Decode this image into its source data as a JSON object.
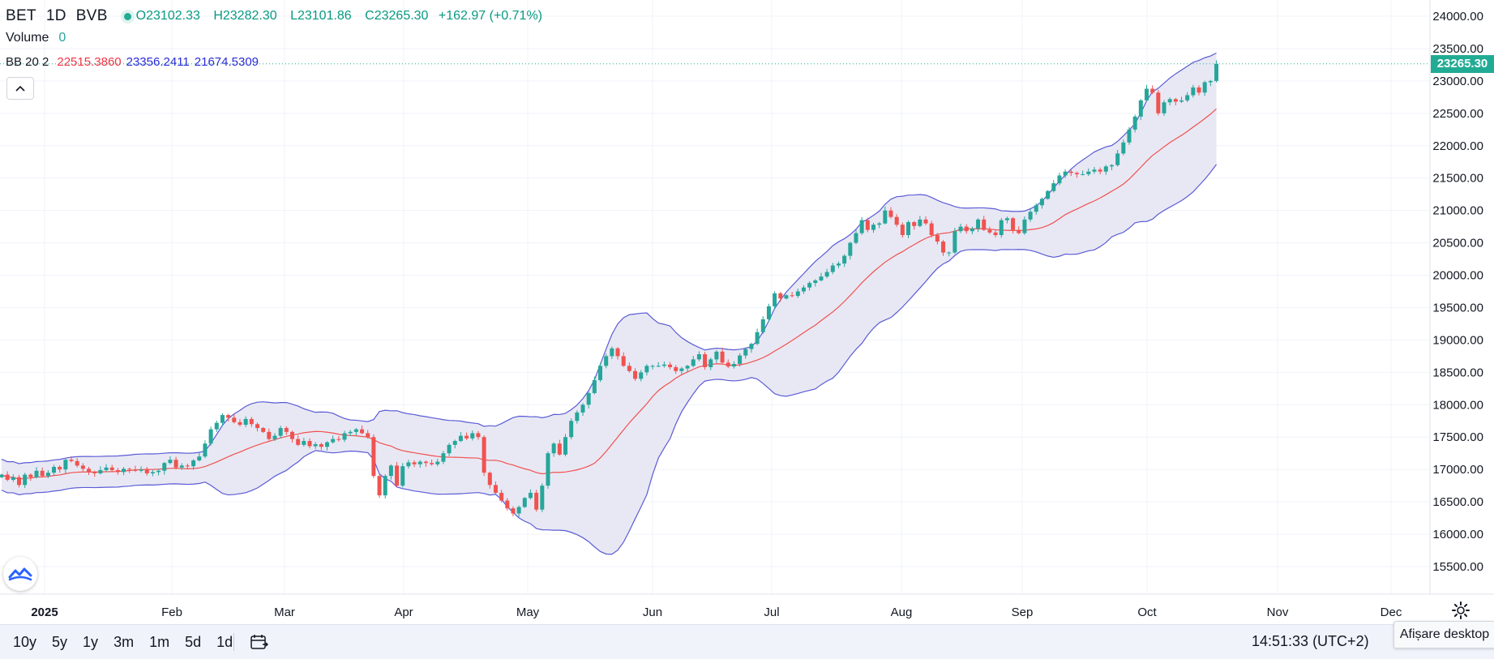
{
  "header": {
    "symbol": "BET",
    "interval": "1D",
    "exchange": "BVB",
    "open_label": "O",
    "open": "23102.33",
    "high_label": "H",
    "high": "23282.30",
    "low_label": "L",
    "low": "23101.86",
    "close_label": "C",
    "close": "23265.30",
    "change": "+162.97 (+0.71%)"
  },
  "volume": {
    "label": "Volume",
    "value": "0"
  },
  "bb": {
    "label": "BB 20 2",
    "basis": "22515.3860",
    "upper": "23356.2411",
    "lower": "21674.5309"
  },
  "last_price_tag": "23265.30",
  "bottom_bar": {
    "ranges": [
      "10y",
      "5y",
      "1y",
      "3m",
      "1m",
      "5d",
      "1d"
    ],
    "clock": "14:51:33 (UTC+2)",
    "tooltip": "Afișare desktop"
  },
  "icons": {
    "collapse": "chevron-up-icon",
    "logo": "tradingview-logo-icon",
    "calendar": "calendar-range-icon",
    "settings": "gear-icon"
  },
  "colors": {
    "up": "#26a69a",
    "down": "#ef5350",
    "bb_band": "#5b5bd6",
    "bb_basis": "#f0514f",
    "bb_fill": "#e6e6f3",
    "last_price": "#22ab94"
  },
  "chart_data": {
    "type": "candlestick",
    "title": "BET · 1D · BVB",
    "ylim": [
      15100,
      24200
    ],
    "y_ticks": [
      "15500.00",
      "16000.00",
      "16500.00",
      "17000.00",
      "17500.00",
      "18000.00",
      "18500.00",
      "19000.00",
      "19500.00",
      "20000.00",
      "20500.00",
      "21000.00",
      "21500.00",
      "22000.00",
      "22500.00",
      "23000.00",
      "23500.00",
      "24000.00"
    ],
    "x_labels": [
      "2025",
      "Feb",
      "Mar",
      "Apr",
      "May",
      "Jun",
      "Jul",
      "Aug",
      "Sep",
      "Oct",
      "Nov",
      "Dec"
    ],
    "grid": true,
    "legend_position": "top-left",
    "close_prices": [
      16920,
      16840,
      16880,
      16760,
      16920,
      16880,
      16980,
      16900,
      16950,
      17040,
      17000,
      17150,
      17130,
      17060,
      17010,
      16960,
      16940,
      16990,
      17030,
      16990,
      16960,
      17010,
      17000,
      16980,
      17000,
      16940,
      16960,
      16980,
      17100,
      17150,
      17030,
      17060,
      17050,
      17140,
      17200,
      17400,
      17620,
      17720,
      17840,
      17800,
      17730,
      17690,
      17780,
      17700,
      17640,
      17580,
      17470,
      17520,
      17640,
      17580,
      17470,
      17380,
      17440,
      17360,
      17390,
      17350,
      17420,
      17470,
      17460,
      17560,
      17580,
      17620,
      17560,
      17500,
      16900,
      16600,
      16900,
      17060,
      16750,
      17050,
      17110,
      17080,
      17120,
      17100,
      17080,
      17120,
      17250,
      17380,
      17440,
      17520,
      17480,
      17560,
      17500,
      16950,
      16760,
      16640,
      16520,
      16400,
      16320,
      16420,
      16560,
      16640,
      16380,
      16750,
      17250,
      17400,
      17230,
      17500,
      17750,
      17880,
      18000,
      18180,
      18380,
      18600,
      18750,
      18870,
      18750,
      18600,
      18520,
      18400,
      18500,
      18600,
      18600,
      18600,
      18620,
      18580,
      18520,
      18560,
      18600,
      18700,
      18780,
      18580,
      18700,
      18820,
      18650,
      18590,
      18630,
      18760,
      18860,
      18940,
      19120,
      19320,
      19520,
      19720,
      19640,
      19690,
      19680,
      19750,
      19810,
      19880,
      19920,
      19980,
      20050,
      20150,
      20180,
      20300,
      20500,
      20650,
      20850,
      20700,
      20780,
      20800,
      21000,
      20900,
      20780,
      20620,
      20820,
      20760,
      20860,
      20800,
      20620,
      20520,
      20350,
      20350,
      20680,
      20750,
      20680,
      20720,
      20860,
      20700,
      20660,
      20620,
      20850,
      20880,
      20700,
      20650,
      20860,
      20980,
      21080,
      21180,
      21300,
      21420,
      21540,
      21600,
      21580,
      21560,
      21560,
      21600,
      21630,
      21600,
      21680,
      21700,
      21880,
      22050,
      22250,
      22450,
      22700,
      22880,
      22820,
      22500,
      22670,
      22720,
      22680,
      22700,
      22780,
      22900,
      22820,
      22980,
      23000,
      23265.3
    ]
  }
}
